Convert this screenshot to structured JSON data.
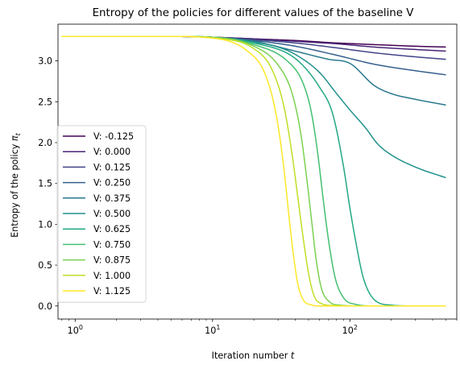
{
  "chart_data": {
    "type": "line",
    "title": "Entropy of the policies for different values of the baseline V",
    "xlabel": "Iteration number",
    "xlabel_var": "t",
    "ylabel": "Entropy of the policy",
    "ylabel_var": "π",
    "ylabel_sub": "t",
    "xscale": "log",
    "xlim": [
      0.75,
      600
    ],
    "ylim": [
      -0.16,
      3.45
    ],
    "x_ticks": [
      {
        "value": 1,
        "base": "10",
        "exp": "0"
      },
      {
        "value": 10,
        "base": "10",
        "exp": "1"
      },
      {
        "value": 100,
        "base": "10",
        "exp": "2"
      }
    ],
    "y_ticks": [
      {
        "value": 0.0,
        "label": "0.0"
      },
      {
        "value": 0.5,
        "label": "0.5"
      },
      {
        "value": 1.0,
        "label": "1.0"
      },
      {
        "value": 1.5,
        "label": "1.5"
      },
      {
        "value": 2.0,
        "label": "2.0"
      },
      {
        "value": 2.5,
        "label": "2.5"
      },
      {
        "value": 3.0,
        "label": "3.0"
      }
    ],
    "legend_position": "lower-left",
    "series": [
      {
        "name": "V: -0.125",
        "color": "#440154",
        "x": [
          0.8,
          5,
          10,
          20,
          40,
          80,
          150,
          300,
          500
        ],
        "y": [
          3.3,
          3.3,
          3.29,
          3.27,
          3.25,
          3.22,
          3.2,
          3.18,
          3.17
        ]
      },
      {
        "name": "V: 0.000",
        "color": "#482475",
        "x": [
          0.8,
          5,
          10,
          20,
          40,
          80,
          150,
          300,
          500
        ],
        "y": [
          3.3,
          3.3,
          3.29,
          3.27,
          3.24,
          3.21,
          3.17,
          3.14,
          3.12
        ]
      },
      {
        "name": "V: 0.125",
        "color": "#414487",
        "x": [
          0.8,
          5,
          10,
          20,
          40,
          80,
          150,
          300,
          500
        ],
        "y": [
          3.3,
          3.3,
          3.29,
          3.26,
          3.22,
          3.16,
          3.1,
          3.05,
          3.02
        ]
      },
      {
        "name": "V: 0.250",
        "color": "#355f8d",
        "x": [
          0.8,
          5,
          10,
          20,
          40,
          80,
          150,
          300,
          500
        ],
        "y": [
          3.3,
          3.3,
          3.29,
          3.25,
          3.18,
          3.07,
          2.96,
          2.88,
          2.83
        ]
      },
      {
        "name": "V: 0.375",
        "color": "#2a788e",
        "x": [
          0.8,
          5,
          10,
          20,
          40,
          70,
          100,
          150,
          200,
          300,
          500
        ],
        "y": [
          3.3,
          3.3,
          3.29,
          3.24,
          3.12,
          3.02,
          2.97,
          2.7,
          2.6,
          2.53,
          2.46
        ]
      },
      {
        "name": "V: 0.500",
        "color": "#21918c",
        "x": [
          0.8,
          5,
          10,
          20,
          30,
          40,
          60,
          80,
          100,
          130,
          160,
          200,
          300,
          500
        ],
        "y": [
          3.3,
          3.3,
          3.29,
          3.23,
          3.17,
          3.08,
          2.86,
          2.6,
          2.4,
          2.18,
          1.98,
          1.85,
          1.7,
          1.57
        ]
      },
      {
        "name": "V: 0.625",
        "color": "#22a884",
        "x": [
          0.8,
          5,
          10,
          20,
          40,
          60,
          75,
          90,
          100,
          110,
          125,
          150,
          200,
          300,
          500
        ],
        "y": [
          3.3,
          3.3,
          3.29,
          3.22,
          3.03,
          2.68,
          2.35,
          1.7,
          1.2,
          0.8,
          0.35,
          0.08,
          0.01,
          0.0,
          0.0
        ]
      },
      {
        "name": "V: 0.750",
        "color": "#44bf70",
        "x": [
          0.8,
          5,
          10,
          20,
          35,
          45,
          52,
          58,
          64,
          70,
          78,
          90,
          110,
          150,
          500
        ],
        "y": [
          3.3,
          3.3,
          3.29,
          3.2,
          3.0,
          2.75,
          2.4,
          1.9,
          1.3,
          0.8,
          0.35,
          0.1,
          0.02,
          0.0,
          0.0
        ]
      },
      {
        "name": "V: 0.875",
        "color": "#7ad151",
        "x": [
          0.8,
          5,
          10,
          20,
          30,
          38,
          44,
          49,
          53,
          57,
          62,
          70,
          85,
          120,
          500
        ],
        "y": [
          3.3,
          3.3,
          3.29,
          3.18,
          2.95,
          2.6,
          2.1,
          1.5,
          1.0,
          0.55,
          0.22,
          0.06,
          0.01,
          0.0,
          0.0
        ]
      },
      {
        "name": "V: 1.000",
        "color": "#bddf26",
        "x": [
          0.8,
          5,
          10,
          20,
          27,
          33,
          38,
          42,
          46,
          50,
          55,
          62,
          75,
          100,
          500
        ],
        "y": [
          3.3,
          3.3,
          3.28,
          3.15,
          2.9,
          2.45,
          1.85,
          1.3,
          0.8,
          0.4,
          0.12,
          0.03,
          0.005,
          0.0,
          0.0
        ]
      },
      {
        "name": "V: 1.125",
        "color": "#fde725",
        "x": [
          0.8,
          5,
          10,
          18,
          24,
          29,
          33,
          36,
          39,
          42,
          46,
          52,
          60,
          80,
          500
        ],
        "y": [
          3.3,
          3.3,
          3.28,
          3.12,
          2.85,
          2.35,
          1.7,
          1.1,
          0.6,
          0.25,
          0.07,
          0.015,
          0.0,
          0.0,
          0.0
        ]
      }
    ]
  }
}
